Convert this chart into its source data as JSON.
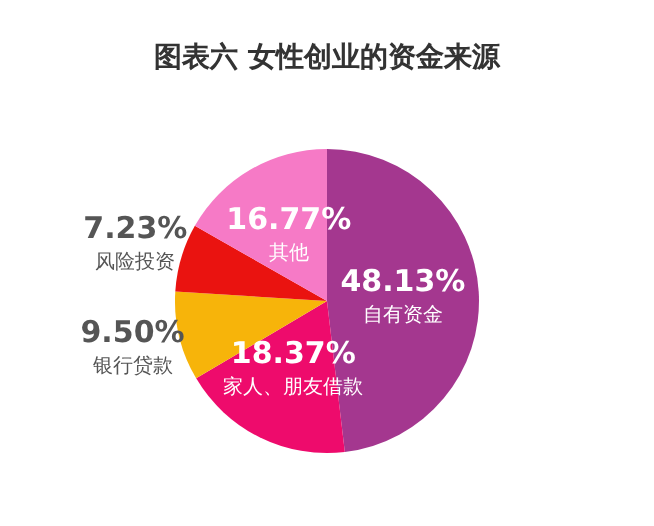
{
  "chart_data": {
    "type": "pie",
    "title": "图表六  女性创业的资金来源",
    "categories": [
      "自有资金",
      "家人、朋友借款",
      "银行贷款",
      "风险投资",
      "其他"
    ],
    "values": [
      48.13,
      18.37,
      9.5,
      7.23,
      16.77
    ],
    "colors": [
      "#a4378f",
      "#ee0b6c",
      "#f7b40a",
      "#ea1310",
      "#f67ac6"
    ],
    "value_labels": [
      "48.13%",
      "18.37%",
      "9.50%",
      "7.23%",
      "16.77%"
    ],
    "legend": false
  }
}
